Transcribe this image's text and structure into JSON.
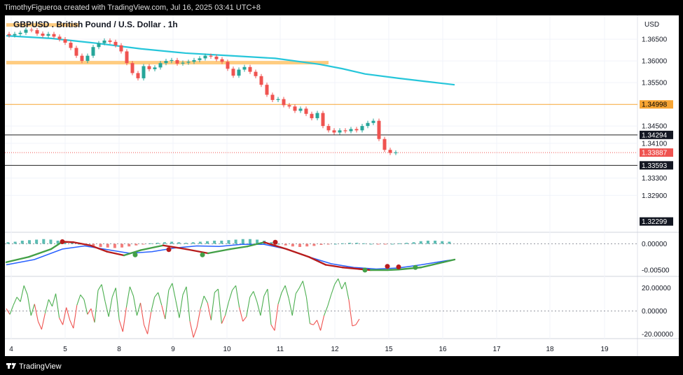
{
  "header": {
    "caption": "TimothyFigueroa created with TradingView.com, Jul 16, 2025 03:41 UTC+8"
  },
  "footer": {
    "brand": "TradingView"
  },
  "colors": {
    "ema": "#26c6da",
    "bull": "#26a69a",
    "bear": "#ef5350",
    "zone": "#ffcc80",
    "level_orange": "#f7a534",
    "macd_fast": "#2962ff",
    "macd_green": "#43a047",
    "macd_red": "#b71c1c"
  },
  "chart_data": [
    {
      "type": "candlestick",
      "title": "GBPUSD . British Pound / U.S. Dollar . 1h",
      "currency": "USD",
      "x_ticks": [
        "4",
        "5",
        "8",
        "9",
        "10",
        "11",
        "12",
        "15",
        "16",
        "17",
        "18",
        "19"
      ],
      "ylim": [
        1.3205,
        1.3705
      ],
      "y_ticks": [
        "1.36500",
        "1.36000",
        "1.35500",
        "1.34500",
        "1.34100",
        "1.33300",
        "1.32900"
      ],
      "price_labels": [
        {
          "text": "1.34998",
          "value": 1.34998,
          "style": "orange"
        },
        {
          "text": "1.34294",
          "value": 1.34294,
          "style": "black"
        },
        {
          "text": "1.33887",
          "value": 1.33887,
          "style": "red"
        },
        {
          "text": "1.33593",
          "value": 1.33593,
          "style": "black"
        },
        {
          "text": "1.32299",
          "value": 1.32299,
          "style": "black"
        }
      ],
      "horizontal_lines": [
        {
          "name": "resistance-line",
          "value": 1.34998,
          "color": "#f7a534"
        },
        {
          "name": "support-line-upper",
          "value": 1.34294,
          "color": "#222222"
        },
        {
          "name": "support-line-lower",
          "value": 1.33593,
          "color": "#222222"
        },
        {
          "name": "current-price-line",
          "value": 1.33887,
          "color": "#ef5350",
          "dotted": true
        }
      ],
      "supply_zones": [
        {
          "name": "zone-top",
          "value": 1.3683,
          "x_start": 0.0,
          "x_end": 13.0
        },
        {
          "name": "zone-middle",
          "value": 1.3596,
          "x_start": 0.0,
          "x_end": 57.5
        }
      ],
      "ema_series": {
        "name": "EMA",
        "x": [
          0,
          8,
          16,
          24,
          32,
          40,
          48,
          56,
          60,
          64,
          70,
          76,
          80
        ],
        "y": [
          1.3658,
          1.3652,
          1.3641,
          1.3628,
          1.3618,
          1.3612,
          1.3606,
          1.3592,
          1.3582,
          1.357,
          1.356,
          1.3551,
          1.3545
        ]
      },
      "candle_closes": [
        1.3659,
        1.3662,
        1.3665,
        1.3672,
        1.3671,
        1.3663,
        1.3658,
        1.3662,
        1.3656,
        1.365,
        1.3642,
        1.363,
        1.3612,
        1.36,
        1.3612,
        1.3632,
        1.3641,
        1.3647,
        1.3644,
        1.3636,
        1.3622,
        1.3595,
        1.3572,
        1.356,
        1.3588,
        1.3581,
        1.3585,
        1.3595,
        1.36,
        1.3602,
        1.3594,
        1.3596,
        1.3598,
        1.3602,
        1.3606,
        1.3612,
        1.361,
        1.3604,
        1.3598,
        1.3582,
        1.3566,
        1.358,
        1.3586,
        1.3575,
        1.3565,
        1.3545,
        1.3522,
        1.351,
        1.3512,
        1.3498,
        1.3495,
        1.3485,
        1.349,
        1.3478,
        1.3468,
        1.348,
        1.345,
        1.344,
        1.3435,
        1.344,
        1.3438,
        1.3443,
        1.344,
        1.345,
        1.3457,
        1.3462,
        1.342,
        1.3395,
        1.3388,
        1.3389
      ]
    },
    {
      "type": "macd",
      "ylim": [
        -0.0062,
        0.0022
      ],
      "y_ticks": [
        "0.00000",
        "-0.00500"
      ],
      "histogram": [
        0.0003,
        0.0004,
        0.0006,
        0.0007,
        0.0008,
        0.0009,
        0.0008,
        0.0006,
        0.0004,
        0.0002,
        0.0,
        -0.0002,
        -0.0004,
        -0.0006,
        -0.0007,
        -0.0008,
        -0.0007,
        -0.0005,
        -0.0003,
        -0.0001,
        0.0001,
        0.0002,
        0.0003,
        0.0004,
        0.0003,
        0.0002,
        0.0003,
        0.0004,
        0.0005,
        0.0006,
        0.0006,
        0.0007,
        0.0008,
        0.0009,
        0.0009,
        0.0008,
        0.0006,
        0.0003,
        0.0,
        -0.0003,
        -0.0005,
        -0.0006,
        -0.0005,
        -0.0004,
        -0.0002,
        -0.0001,
        0.0,
        0.0001,
        0.0002,
        0.0002,
        0.0001,
        0.0,
        -0.0001,
        -0.0001,
        0.0,
        0.0001,
        0.0002,
        0.0003,
        0.0005,
        0.0006,
        0.0006,
        0.0005,
        0.0004
      ],
      "macd_line": {
        "x": [
          0,
          4,
          8,
          10,
          12,
          15,
          18,
          21,
          24,
          28,
          32,
          36,
          40,
          43,
          46,
          50,
          54,
          57,
          60,
          63,
          65,
          68,
          70,
          74,
          78,
          80
        ],
        "y": [
          -0.0035,
          -0.0025,
          -0.001,
          0.0004,
          0.0003,
          -0.0003,
          -0.0015,
          -0.0022,
          -0.0012,
          -0.0003,
          -0.001,
          -0.0018,
          -0.001,
          -0.0005,
          0.0003,
          -0.001,
          -0.0025,
          -0.004,
          -0.0045,
          -0.0048,
          -0.005,
          -0.005,
          -0.0049,
          -0.0045,
          -0.0035,
          -0.003
        ]
      },
      "signal_line": {
        "x": [
          0,
          5,
          10,
          14,
          18,
          22,
          26,
          30,
          34,
          38,
          42,
          46,
          50,
          54,
          58,
          62,
          66,
          70,
          74,
          78,
          80
        ],
        "y": [
          -0.004,
          -0.003,
          -0.001,
          -0.0004,
          -0.0011,
          -0.0018,
          -0.0015,
          -0.0008,
          -0.0004,
          -0.0005,
          -0.0001,
          -0.0001,
          -0.001,
          -0.0025,
          -0.0038,
          -0.0045,
          -0.0048,
          -0.0046,
          -0.004,
          -0.0033,
          -0.003
        ]
      },
      "markers": [
        {
          "x": 10,
          "y": 0.0004,
          "kind": "bear"
        },
        {
          "x": 23,
          "y": -0.0021,
          "kind": "bull"
        },
        {
          "x": 29,
          "y": -0.0011,
          "kind": "bear"
        },
        {
          "x": 35,
          "y": -0.0021,
          "kind": "bull"
        },
        {
          "x": 48,
          "y": 0.0003,
          "kind": "bear"
        },
        {
          "x": 64,
          "y": -0.005,
          "kind": "bull"
        },
        {
          "x": 68,
          "y": -0.0043,
          "kind": "bear"
        },
        {
          "x": 70,
          "y": -0.0044,
          "kind": "bear"
        },
        {
          "x": 73,
          "y": -0.0045,
          "kind": "bull"
        }
      ]
    },
    {
      "type": "oscillator",
      "ylim": [
        -24,
        30
      ],
      "y_ticks": [
        "20.00000",
        "0.00000",
        "-20.00000"
      ],
      "values": [
        2,
        -3,
        5,
        12,
        8,
        22,
        14,
        -4,
        6,
        -9,
        -16,
        -2,
        10,
        4,
        15,
        -6,
        -12,
        3,
        -8,
        -15,
        5,
        14,
        10,
        -3,
        2,
        -10,
        18,
        23,
        8,
        -5,
        12,
        20,
        -8,
        -18,
        3,
        21,
        13,
        -4,
        7,
        -12,
        -20,
        -1,
        12,
        16,
        5,
        -7,
        18,
        24,
        9,
        -6,
        14,
        21,
        -9,
        -23,
        -14,
        2,
        13,
        7,
        -8,
        16,
        19,
        -11,
        -4,
        8,
        18,
        22,
        3,
        -9,
        -5,
        12,
        17,
        8,
        -4,
        13,
        19,
        -12,
        -17,
        6,
        16,
        22,
        11,
        -4,
        15,
        20,
        26,
        12,
        -11,
        -12,
        -8,
        -17,
        -4,
        4,
        14,
        23,
        28,
        19,
        25,
        10,
        -13,
        -12,
        -7
      ]
    }
  ]
}
